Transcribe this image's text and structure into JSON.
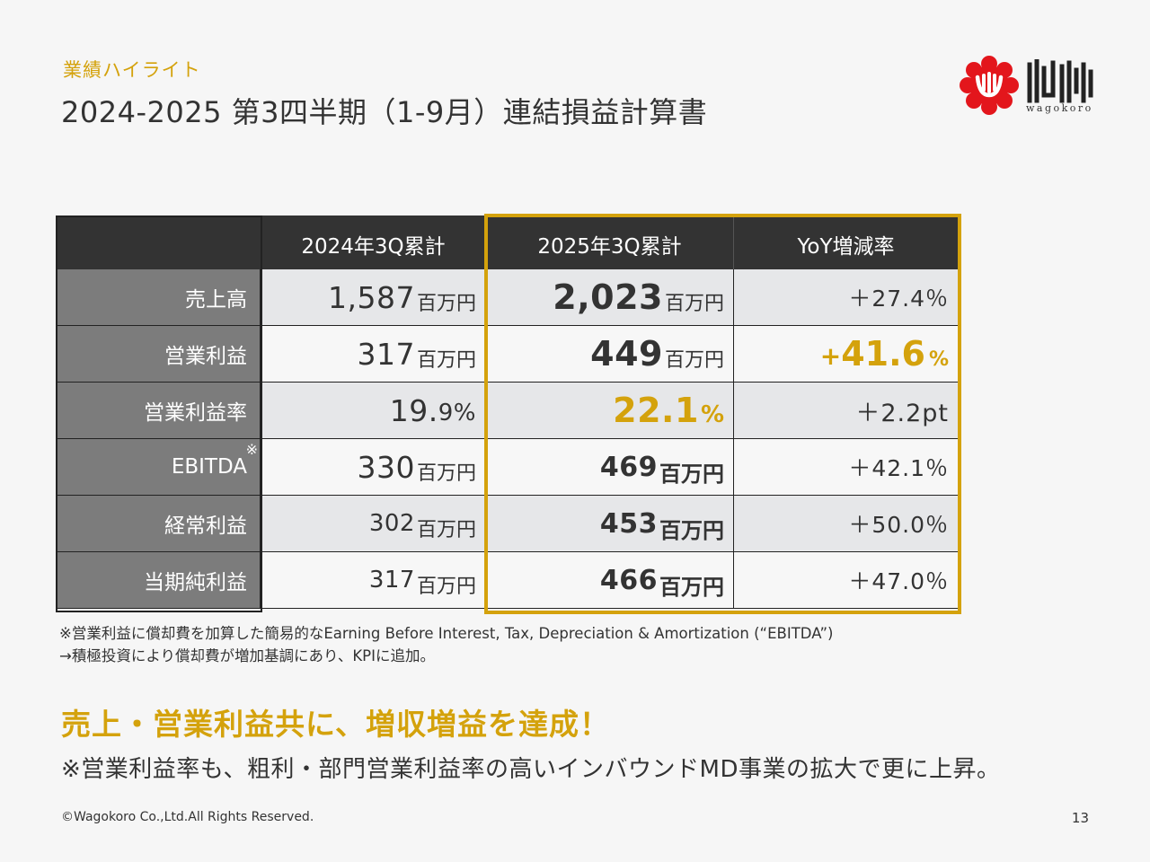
{
  "header": {
    "section_label": "業績ハイライト",
    "title": "2024-2025 第3四半期（1-9月）連結損益計算書"
  },
  "logo": {
    "brand_mark": "wagokoro-mark-icon",
    "romaji": "wagokoro",
    "brand_color": "#e3161c"
  },
  "table": {
    "columns": [
      "",
      "2024年3Q累計",
      "2025年3Q累計",
      "YoY増減率"
    ],
    "rows": [
      {
        "label": "売上高",
        "v2024": "1,587",
        "u2024": "百万円",
        "v2025": "2,023",
        "u2025": "百万円",
        "yoy": "＋27.4％"
      },
      {
        "label": "営業利益",
        "v2024": "317",
        "u2024": "百万円",
        "v2025": "449",
        "u2025": "百万円",
        "yoy_sign": "+",
        "yoy_num": "41.6",
        "yoy_unit": "%"
      },
      {
        "label": "営業利益率",
        "v2024": "19.",
        "v2024_dec": "9%",
        "v2025": "22.1",
        "u2025": "%",
        "yoy": "＋2.2pt"
      },
      {
        "label": "EBITDA",
        "note_mark": "※",
        "v2024": "330",
        "u2024": "百万円",
        "v2025": "469",
        "u2025": "百万円",
        "yoy": "＋42.1％"
      },
      {
        "label": "経常利益",
        "v2024": "302",
        "u2024": "百万円",
        "v2025": "453",
        "u2025": "百万円",
        "yoy": "＋50.0％"
      },
      {
        "label": "当期純利益",
        "v2024": "317",
        "u2024": "百万円",
        "v2025": "466",
        "u2025": "百万円",
        "yoy": "＋47.0％"
      }
    ],
    "highlight_color": "#d4a20c"
  },
  "notes": {
    "line1": "※営業利益に償却費を加算した簡易的なEarning Before Interest, Tax, Depreciation & Amortization (“EBITDA”)",
    "line2": "→積極投資により償却費が増加基調にあり、KPIに追加。"
  },
  "headline": "売上・営業利益共に、増収増益を達成！",
  "subline": "※営業利益率も、粗利・部門営業利益率の高いインバウンドMD事業の拡大で更に上昇。",
  "footer": {
    "copyright": "©Wagokoro Co.,Ltd.All Rights Reserved.",
    "page": "13"
  }
}
